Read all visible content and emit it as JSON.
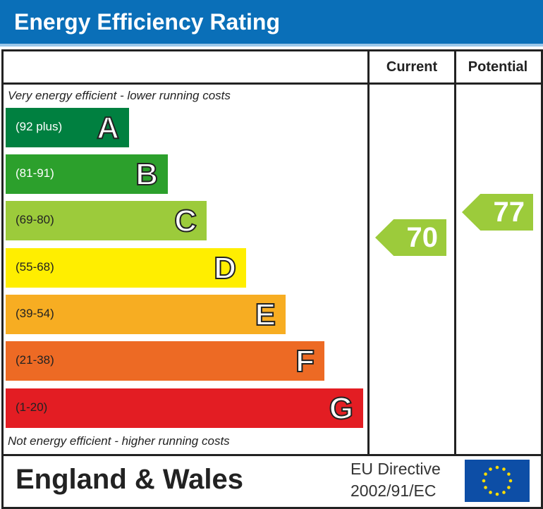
{
  "header": {
    "title": "Energy Efficiency Rating"
  },
  "columns": {
    "current": "Current",
    "potential": "Potential"
  },
  "notes": {
    "top": "Very energy efficient - lower running costs",
    "bottom": "Not energy efficient - higher running costs"
  },
  "footer": {
    "region": "England & Wales",
    "directive_line1": "EU Directive",
    "directive_line2": "2002/91/EC",
    "flag": "eu-flag-icon"
  },
  "chart_data": {
    "type": "bar",
    "bands": [
      {
        "letter": "A",
        "range": "(92 plus)",
        "color": "#008040"
      },
      {
        "letter": "B",
        "range": "(81-91)",
        "color": "#2ca02c"
      },
      {
        "letter": "C",
        "range": "(69-80)",
        "color": "#9ccb3b"
      },
      {
        "letter": "D",
        "range": "(55-68)",
        "color": "#ffee00"
      },
      {
        "letter": "E",
        "range": "(39-54)",
        "color": "#f7ad22"
      },
      {
        "letter": "F",
        "range": "(21-38)",
        "color": "#ed6a24"
      },
      {
        "letter": "G",
        "range": "(1-20)",
        "color": "#e31d23"
      }
    ],
    "current": {
      "value": "70",
      "band": "C",
      "color": "#9ccb3b"
    },
    "potential": {
      "value": "77",
      "band": "C",
      "color": "#9ccb3b"
    }
  }
}
